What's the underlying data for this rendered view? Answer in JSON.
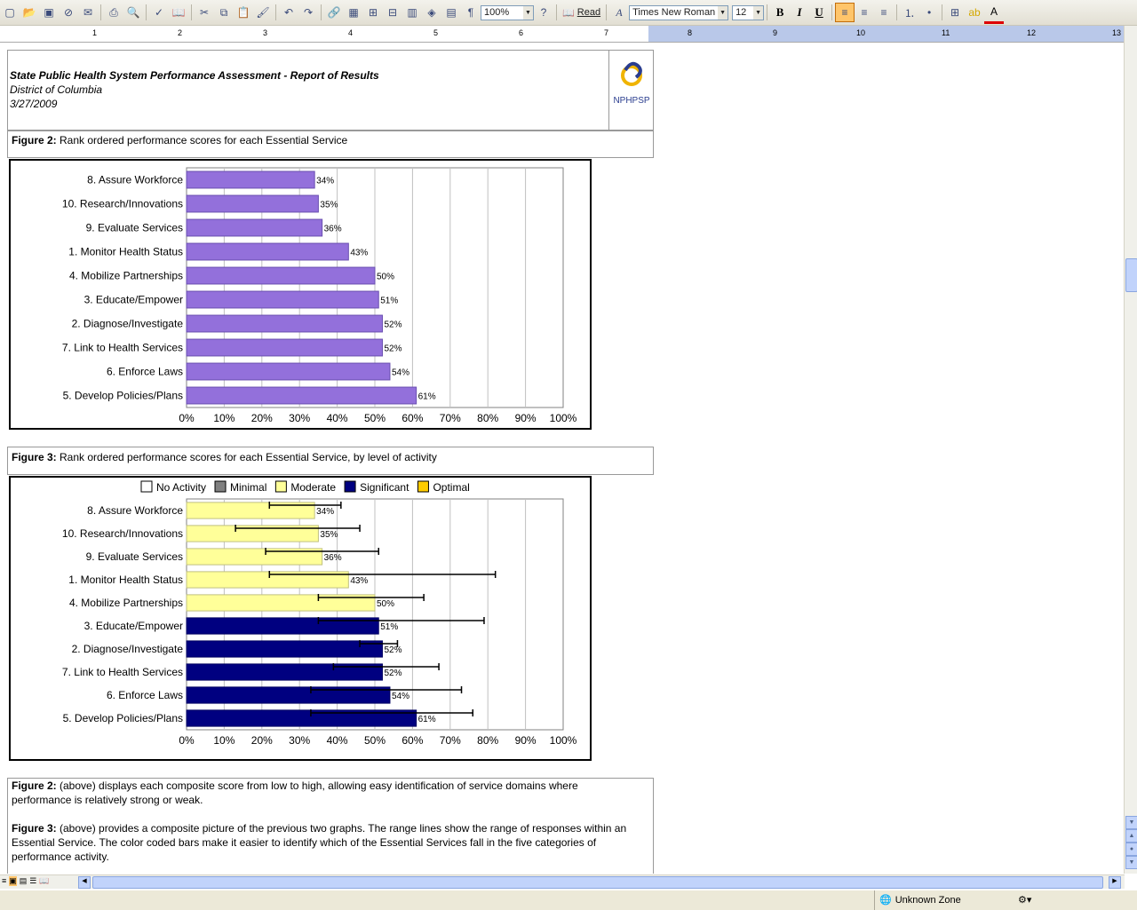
{
  "toolbar": {
    "zoom": "100%",
    "read_label": "Read",
    "font_name": "Times New Roman",
    "font_size": "12",
    "bold_label": "B",
    "italic_label": "I",
    "underline_label": "U"
  },
  "ruler": {
    "marks": [
      "1",
      "2",
      "3",
      "4",
      "5",
      "6",
      "7",
      "8",
      "9",
      "10",
      "11",
      "12",
      "13"
    ]
  },
  "header": {
    "title": "State Public Health System Performance Assessment - Report of Results",
    "subtitle": "District of Columbia",
    "date": "3/27/2009",
    "logo_text": "NPHPSP"
  },
  "figure2": {
    "label": "Figure 2:",
    "caption": " Rank ordered performance scores for each Essential Service"
  },
  "figure3": {
    "label": "Figure 3:",
    "caption": " Rank ordered performance scores for each Essential Service, by level of activity"
  },
  "chart_data": [
    {
      "type": "bar",
      "orientation": "horizontal",
      "categories": [
        "8.  Assure Workforce",
        "10.  Research/Innovations",
        "9.  Evaluate Services",
        "1.  Monitor Health Status",
        "4.  Mobilize Partnerships",
        "3.  Educate/Empower",
        "2.  Diagnose/Investigate",
        "7.  Link to Health Services",
        "6.  Enforce Laws",
        "5.  Develop Policies/Plans"
      ],
      "values": [
        34,
        35,
        36,
        43,
        50,
        51,
        52,
        52,
        54,
        61
      ],
      "data_labels": [
        "34%",
        "35%",
        "36%",
        "43%",
        "50%",
        "51%",
        "52%",
        "52%",
        "54%",
        "61%"
      ],
      "xlim": [
        0,
        100
      ],
      "xticks": [
        "0%",
        "10%",
        "20%",
        "30%",
        "40%",
        "50%",
        "60%",
        "70%",
        "80%",
        "90%",
        "100%"
      ],
      "bar_color": "#9370db",
      "grid": true
    },
    {
      "type": "bar",
      "orientation": "horizontal",
      "categories": [
        "8.  Assure Workforce",
        "10.  Research/Innovations",
        "9.  Evaluate Services",
        "1.  Monitor Health Status",
        "4.  Mobilize Partnerships",
        "3.  Educate/Empower",
        "2.  Diagnose/Investigate",
        "7.  Link to Health Services",
        "6.  Enforce Laws",
        "5.  Develop Policies/Plans"
      ],
      "values": [
        34,
        35,
        36,
        43,
        50,
        51,
        52,
        52,
        54,
        61
      ],
      "data_labels": [
        "34%",
        "35%",
        "36%",
        "43%",
        "50%",
        "51%",
        "52%",
        "52%",
        "54%",
        "61%"
      ],
      "levels": [
        "Moderate",
        "Moderate",
        "Moderate",
        "Moderate",
        "Moderate",
        "Significant",
        "Significant",
        "Significant",
        "Significant",
        "Significant"
      ],
      "range_min": [
        22,
        13,
        21,
        22,
        35,
        35,
        46,
        39,
        33,
        33
      ],
      "range_max": [
        41,
        46,
        51,
        82,
        63,
        79,
        56,
        67,
        73,
        76
      ],
      "xlim": [
        0,
        100
      ],
      "xticks": [
        "0%",
        "10%",
        "20%",
        "30%",
        "40%",
        "50%",
        "60%",
        "70%",
        "80%",
        "90%",
        "100%"
      ],
      "legend": [
        {
          "name": "No Activity",
          "color": "#ffffff"
        },
        {
          "name": "Minimal",
          "color": "#808080"
        },
        {
          "name": "Moderate",
          "color": "#ffff99"
        },
        {
          "name": "Significant",
          "color": "#000080"
        },
        {
          "name": "Optimal",
          "color": "#ffcc00"
        }
      ],
      "legend_position": "top",
      "grid": true
    }
  ],
  "notes": {
    "fig2_label": "Figure 2:",
    "fig2_text": " (above) displays each composite score from low to high, allowing easy identification of service domains where performance is relatively strong or weak.",
    "fig3_label": "Figure 3:",
    "fig3_text": " (above) provides a composite picture of the previous two graphs. The range lines show the range of responses within an Essential Service. The color coded bars make it easier to identify which of the Essential Services fall in the five categories of performance activity."
  },
  "status": {
    "zone": "Unknown Zone"
  }
}
